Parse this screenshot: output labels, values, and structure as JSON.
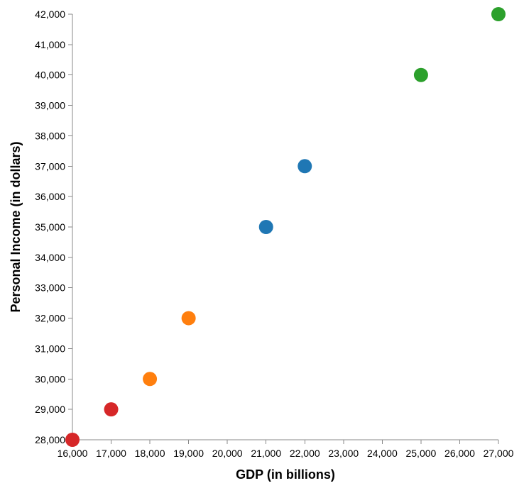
{
  "chart_data": {
    "type": "scatter",
    "title": "",
    "xlabel": "GDP (in billions)",
    "ylabel": "Personal Income (in dollars)",
    "xlim": [
      16000,
      27000
    ],
    "ylim": [
      28000,
      42000
    ],
    "x_ticks": [
      16000,
      17000,
      18000,
      19000,
      20000,
      21000,
      22000,
      23000,
      24000,
      25000,
      26000,
      27000
    ],
    "y_ticks": [
      28000,
      29000,
      30000,
      31000,
      32000,
      33000,
      34000,
      35000,
      36000,
      37000,
      38000,
      39000,
      40000,
      41000,
      42000
    ],
    "grid": false,
    "legend": "none",
    "points": [
      {
        "x": 16000,
        "y": 28000,
        "color": "#d62728"
      },
      {
        "x": 17000,
        "y": 29000,
        "color": "#d62728"
      },
      {
        "x": 18000,
        "y": 30000,
        "color": "#ff7f0e"
      },
      {
        "x": 19000,
        "y": 32000,
        "color": "#ff7f0e"
      },
      {
        "x": 21000,
        "y": 35000,
        "color": "#1f77b4"
      },
      {
        "x": 22000,
        "y": 37000,
        "color": "#1f77b4"
      },
      {
        "x": 25000,
        "y": 40000,
        "color": "#2ca02c"
      },
      {
        "x": 27000,
        "y": 42000,
        "color": "#2ca02c"
      }
    ]
  }
}
